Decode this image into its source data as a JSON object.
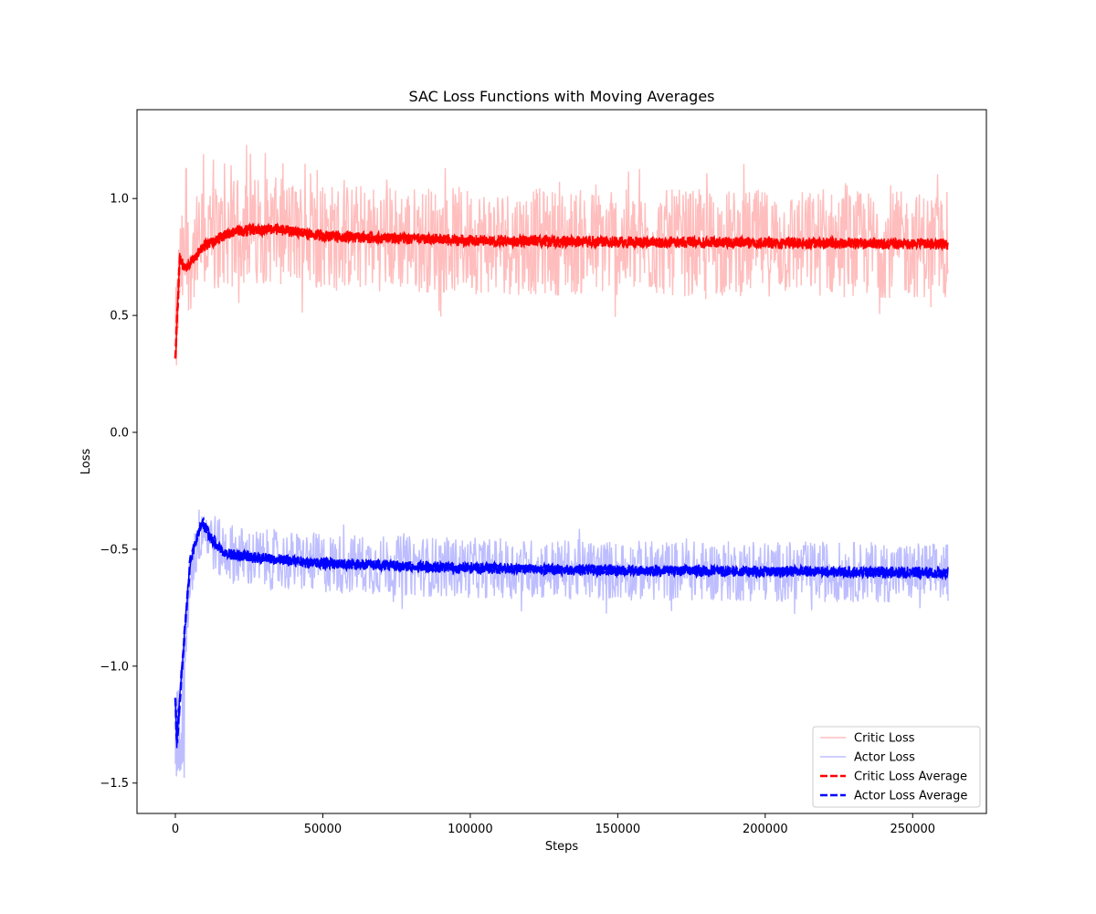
{
  "chart_data": {
    "type": "line",
    "title": "SAC Loss Functions with Moving Averages",
    "xlabel": "Steps",
    "ylabel": "Loss",
    "xlim": [
      -13000,
      275000
    ],
    "ylim": [
      -1.63,
      1.38
    ],
    "xticks": [
      0,
      50000,
      100000,
      150000,
      200000,
      250000
    ],
    "yticks": [
      -1.5,
      -1.0,
      -0.5,
      0.0,
      0.5,
      1.0
    ],
    "xtick_labels": [
      "0",
      "50000",
      "100000",
      "150000",
      "200000",
      "250000"
    ],
    "ytick_labels": [
      "−1.5",
      "−1.0",
      "−0.5",
      "0.0",
      "0.5",
      "1.0"
    ],
    "grid": false,
    "legend": "lower-right",
    "x_max": 262000,
    "series": [
      {
        "name": "Critic Loss",
        "style": "solid",
        "color": "#ffbdbd",
        "kind": "raw",
        "center": [
          [
            0,
            0.35
          ],
          [
            1500,
            0.7
          ],
          [
            3000,
            0.72
          ],
          [
            10000,
            0.82
          ],
          [
            25000,
            0.87
          ],
          [
            35000,
            0.86
          ],
          [
            50000,
            0.84
          ],
          [
            100000,
            0.82
          ],
          [
            150000,
            0.81
          ],
          [
            200000,
            0.81
          ],
          [
            262000,
            0.8
          ]
        ],
        "band_lower": 0.57,
        "band_upper": 1.03,
        "spike_max": 1.24
      },
      {
        "name": "Actor Loss",
        "style": "solid",
        "color": "#bdbdff",
        "kind": "raw",
        "center": [
          [
            0,
            -1.25
          ],
          [
            2000,
            -1.2
          ],
          [
            5000,
            -0.6
          ],
          [
            9000,
            -0.4
          ],
          [
            15000,
            -0.5
          ],
          [
            25000,
            -0.54
          ],
          [
            50000,
            -0.56
          ],
          [
            100000,
            -0.58
          ],
          [
            150000,
            -0.59
          ],
          [
            200000,
            -0.595
          ],
          [
            262000,
            -0.6
          ]
        ],
        "band_lower": -0.72,
        "band_upper": -0.46,
        "spike_min": -1.5
      },
      {
        "name": "Critic Loss Average",
        "style": "dashed",
        "color": "#ff0000",
        "kind": "average",
        "center": [
          [
            0,
            0.3
          ],
          [
            800,
            0.55
          ],
          [
            1500,
            0.75
          ],
          [
            3000,
            0.7
          ],
          [
            6000,
            0.74
          ],
          [
            10000,
            0.8
          ],
          [
            20000,
            0.86
          ],
          [
            33000,
            0.87
          ],
          [
            50000,
            0.84
          ],
          [
            100000,
            0.82
          ],
          [
            150000,
            0.815
          ],
          [
            200000,
            0.81
          ],
          [
            262000,
            0.805
          ]
        ]
      },
      {
        "name": "Actor Loss Average",
        "style": "dashed",
        "color": "#0000ff",
        "kind": "average",
        "center": [
          [
            0,
            -1.15
          ],
          [
            500,
            -1.33
          ],
          [
            2000,
            -1.05
          ],
          [
            5000,
            -0.55
          ],
          [
            9000,
            -0.38
          ],
          [
            12000,
            -0.45
          ],
          [
            17000,
            -0.52
          ],
          [
            30000,
            -0.54
          ],
          [
            50000,
            -0.56
          ],
          [
            100000,
            -0.58
          ],
          [
            150000,
            -0.59
          ],
          [
            200000,
            -0.595
          ],
          [
            262000,
            -0.6
          ]
        ]
      }
    ]
  }
}
